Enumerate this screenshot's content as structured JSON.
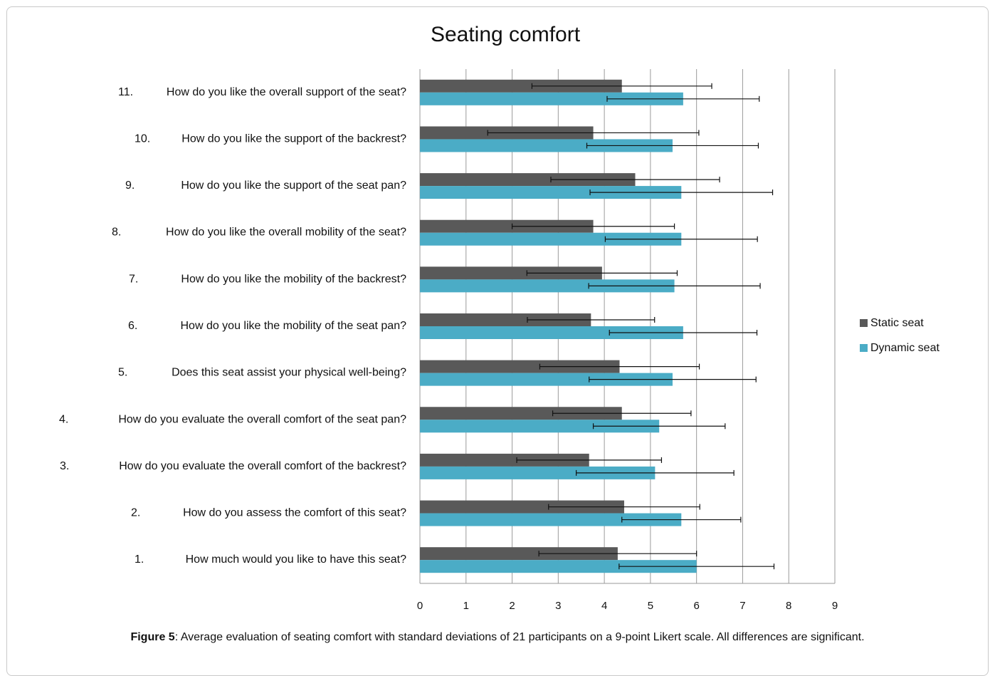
{
  "caption": {
    "label": "Figure 5",
    "text": ": Average evaluation of seating comfort with standard deviations of 21 participants on a 9-point Likert scale. All differences are significant."
  },
  "chart_data": {
    "type": "bar",
    "orientation": "horizontal",
    "title": "Seating comfort",
    "xlabel": "",
    "ylabel": "",
    "xlim": [
      0,
      9
    ],
    "xticks": [
      0,
      1,
      2,
      3,
      4,
      5,
      6,
      7,
      8,
      9
    ],
    "grid": true,
    "legend_position": "right",
    "categories": [
      {
        "num": "11.",
        "text": "How do you like the overall support of the seat?"
      },
      {
        "num": "10.",
        "text": "How do you like the support of the backrest?"
      },
      {
        "num": "9.",
        "text": "How do you like the support of the seat pan?"
      },
      {
        "num": "8.",
        "text": "How do you like the overall mobility of the seat?"
      },
      {
        "num": "7.",
        "text": "How do you like the mobility of the backrest?"
      },
      {
        "num": "6.",
        "text": "How do you like the mobility of the seat pan?"
      },
      {
        "num": "5.",
        "text": "Does this seat assist your physical well-being?"
      },
      {
        "num": "4.",
        "text": "How do you evaluate the overall comfort of the seat pan?"
      },
      {
        "num": "3.",
        "text": "How do you evaluate the overall comfort of the backrest?"
      },
      {
        "num": "2.",
        "text": "How do you assess the comfort of this seat?"
      },
      {
        "num": "1.",
        "text": "How much would you like to have this seat?"
      }
    ],
    "series": [
      {
        "name": "Static seat",
        "color": "#595959",
        "values": [
          4.38,
          3.76,
          4.67,
          3.76,
          3.95,
          3.71,
          4.33,
          4.38,
          3.67,
          4.43,
          4.29
        ],
        "error": [
          1.95,
          2.29,
          1.83,
          1.76,
          1.63,
          1.38,
          1.73,
          1.5,
          1.57,
          1.64,
          1.71
        ]
      },
      {
        "name": "Dynamic seat",
        "color": "#4bacc6",
        "values": [
          5.71,
          5.48,
          5.67,
          5.67,
          5.52,
          5.71,
          5.48,
          5.19,
          5.1,
          5.67,
          6.0
        ],
        "error": [
          1.65,
          1.86,
          1.98,
          1.65,
          1.86,
          1.6,
          1.81,
          1.43,
          1.71,
          1.29,
          1.68
        ]
      }
    ]
  }
}
